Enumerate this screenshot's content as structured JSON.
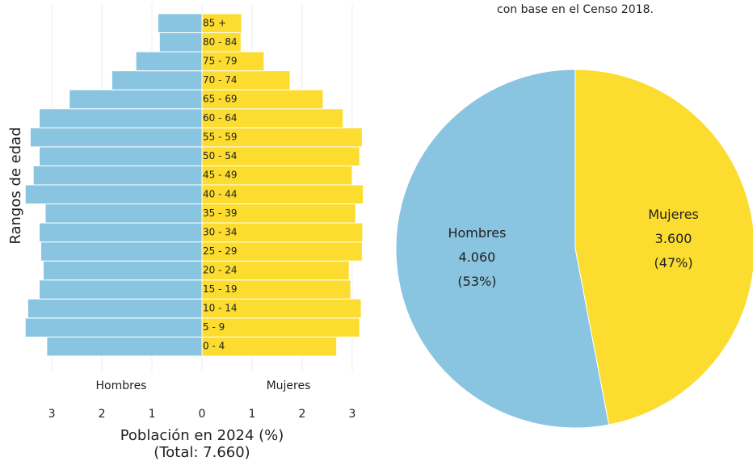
{
  "chart_data": [
    {
      "type": "pyramid",
      "y_label": "Rangos de edad",
      "x_label": "Población en 2024 (%)",
      "total": 7660,
      "total_label": "(Total: 7.660)",
      "categories": [
        "0 - 4",
        "5 - 9",
        "10 - 14",
        "15 - 19",
        "20 - 24",
        "25 - 29",
        "30 - 34",
        "35 - 39",
        "40 - 44",
        "45 - 49",
        "50 - 54",
        "55 - 59",
        "60 - 64",
        "65 - 69",
        "70 - 74",
        "75 - 79",
        "80 - 84",
        "85 +"
      ],
      "series": [
        {
          "name": "Hombres",
          "color": "#89c4e1",
          "values": [
            3.1,
            3.53,
            3.48,
            3.25,
            3.17,
            3.22,
            3.25,
            3.13,
            3.53,
            3.37,
            3.25,
            3.43,
            3.25,
            2.65,
            1.8,
            1.32,
            0.85,
            0.88
          ]
        },
        {
          "name": "Mujeres",
          "color": "#fbdc2f",
          "values": [
            2.69,
            3.15,
            3.18,
            2.97,
            2.94,
            3.2,
            3.21,
            3.07,
            3.22,
            3.0,
            3.15,
            3.2,
            2.82,
            2.42,
            1.76,
            1.24,
            0.78,
            0.79
          ]
        }
      ],
      "xlim": [
        -3.55,
        3.55
      ],
      "xticks": [
        {
          "value": -3,
          "label": "3"
        },
        {
          "value": -2,
          "label": "2"
        },
        {
          "value": -1,
          "label": "1"
        },
        0,
        1,
        2,
        3
      ],
      "grid": true
    },
    {
      "type": "pie",
      "title": "con base en el Censo 2018.",
      "labels": [
        "Mujeres",
        "Hombres"
      ],
      "values": [
        3600,
        4060
      ],
      "value_labels": [
        "3.600",
        "4.060"
      ],
      "percents": [
        47,
        53
      ],
      "percent_labels": [
        "(47%)",
        "(53%)"
      ],
      "colors": [
        "#fbdc2f",
        "#89c4e1"
      ]
    }
  ]
}
